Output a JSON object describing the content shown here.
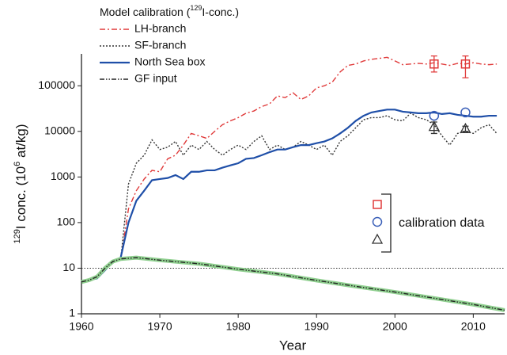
{
  "chart_data": {
    "type": "line",
    "title": {
      "text1": "Model calibration (",
      "sup": "129",
      "text2": "I-conc.)"
    },
    "xlabel": "Year",
    "ylabel": {
      "sup1": "129",
      "text1": "I conc. (10",
      "sup2": "6",
      "text2": " at/kg)"
    },
    "xlim": [
      1960,
      2014
    ],
    "xticks": [
      1960,
      1970,
      1980,
      1990,
      2000,
      2010
    ],
    "ylim": [
      1,
      500000
    ],
    "yticks": [
      1,
      10,
      100,
      1000,
      10000,
      100000
    ],
    "log_y": true,
    "legend": "top-left",
    "reference_line": 10,
    "series": [
      {
        "name": "LH-branch",
        "color": "#e03a3a",
        "dash": "dash-dot",
        "x": [
          1965,
          1966,
          1967,
          1968,
          1969,
          1970,
          1971,
          1972,
          1973,
          1974,
          1975,
          1976,
          1977,
          1978,
          1979,
          1980,
          1981,
          1982,
          1983,
          1984,
          1985,
          1986,
          1987,
          1988,
          1989,
          1990,
          1991,
          1992,
          1993,
          1994,
          1995,
          1996,
          1997,
          1998,
          1999,
          2000,
          2001,
          2002,
          2003,
          2004,
          2005,
          2006,
          2007,
          2008,
          2009,
          2010,
          2011,
          2012,
          2013
        ],
        "values": [
          15,
          200,
          500,
          900,
          1400,
          1300,
          2500,
          3000,
          5000,
          9000,
          8000,
          7000,
          10000,
          14000,
          17000,
          20000,
          25000,
          28000,
          35000,
          40000,
          60000,
          55000,
          70000,
          50000,
          60000,
          90000,
          100000,
          120000,
          200000,
          280000,
          300000,
          350000,
          380000,
          400000,
          420000,
          350000,
          290000,
          300000,
          310000,
          300000,
          320000,
          300000,
          280000,
          310000,
          300000,
          320000,
          300000,
          290000,
          300000
        ]
      },
      {
        "name": "SF-branch",
        "color": "#333333",
        "dash": "dotted",
        "x": [
          1965,
          1966,
          1967,
          1968,
          1969,
          1970,
          1971,
          1972,
          1973,
          1974,
          1975,
          1976,
          1977,
          1978,
          1979,
          1980,
          1981,
          1982,
          1983,
          1984,
          1985,
          1986,
          1987,
          1988,
          1989,
          1990,
          1991,
          1992,
          1993,
          1994,
          1995,
          1996,
          1997,
          1998,
          1999,
          2000,
          2001,
          2002,
          2003,
          2004,
          2005,
          2006,
          2007,
          2008,
          2009,
          2010,
          2011,
          2012,
          2013
        ],
        "values": [
          15,
          700,
          2000,
          3000,
          6500,
          4000,
          4500,
          6000,
          3000,
          5000,
          4000,
          6000,
          4000,
          3000,
          4000,
          5000,
          4000,
          6000,
          8000,
          4000,
          5000,
          4000,
          4500,
          6000,
          5000,
          4000,
          5000,
          3000,
          6000,
          8000,
          12000,
          18000,
          20000,
          20000,
          22000,
          18000,
          17000,
          25000,
          20000,
          18000,
          14000,
          8000,
          5000,
          9000,
          10000,
          9000,
          12000,
          14000,
          9000
        ]
      },
      {
        "name": "North Sea box",
        "color": "#1f4fa8",
        "dash": "solid",
        "x": [
          1960,
          1961,
          1962,
          1963,
          1964,
          1965,
          1966,
          1967,
          1968,
          1969,
          1970,
          1971,
          1972,
          1973,
          1974,
          1975,
          1976,
          1977,
          1978,
          1979,
          1980,
          1981,
          1982,
          1983,
          1984,
          1985,
          1986,
          1987,
          1988,
          1989,
          1990,
          1991,
          1992,
          1993,
          1994,
          1995,
          1996,
          1997,
          1998,
          1999,
          2000,
          2001,
          2002,
          2003,
          2004,
          2005,
          2006,
          2007,
          2008,
          2009,
          2010,
          2011,
          2012,
          2013
        ],
        "values": [
          5,
          5.5,
          6,
          9,
          14,
          17,
          100,
          300,
          500,
          850,
          900,
          950,
          1100,
          900,
          1300,
          1300,
          1400,
          1400,
          1600,
          1800,
          2000,
          2500,
          2600,
          3000,
          3500,
          4000,
          4000,
          4500,
          5000,
          5000,
          5500,
          6000,
          7000,
          9000,
          12000,
          17000,
          22000,
          26000,
          28000,
          30000,
          30000,
          27000,
          26000,
          25000,
          25000,
          26000,
          24000,
          25000,
          23000,
          22000,
          21000,
          21000,
          22000,
          22000
        ]
      },
      {
        "name": "GF input",
        "color": "#222222",
        "dash": "dash-dot-dot",
        "band_color": "#8fcf8f",
        "x": [
          1960,
          1961,
          1962,
          1963,
          1964,
          1965,
          1967,
          1970,
          1975,
          1980,
          1985,
          1990,
          1995,
          2000,
          2005,
          2010,
          2014
        ],
        "values": [
          5,
          5.5,
          6.5,
          10,
          14,
          16,
          17,
          15,
          12.5,
          9.5,
          7.5,
          5.4,
          4,
          3,
          2.2,
          1.6,
          1.2
        ]
      }
    ],
    "calibration": {
      "label": "calibration data",
      "sets": [
        {
          "marker": "square",
          "color": "#e03a3a",
          "x": [
            2005,
            2009
          ],
          "values": [
            300000,
            300000
          ],
          "lower": [
            200000,
            150000
          ],
          "upper": [
            450000,
            450000
          ]
        },
        {
          "marker": "circle",
          "color": "#3a5fb8",
          "x": [
            2005,
            2009
          ],
          "values": [
            22000,
            26000
          ]
        },
        {
          "marker": "triangle",
          "color": "#333333",
          "x": [
            2005,
            2009
          ],
          "values": [
            12800,
            11500
          ],
          "lower": [
            9000,
            10000
          ],
          "upper": [
            16000,
            13000
          ]
        }
      ]
    }
  }
}
